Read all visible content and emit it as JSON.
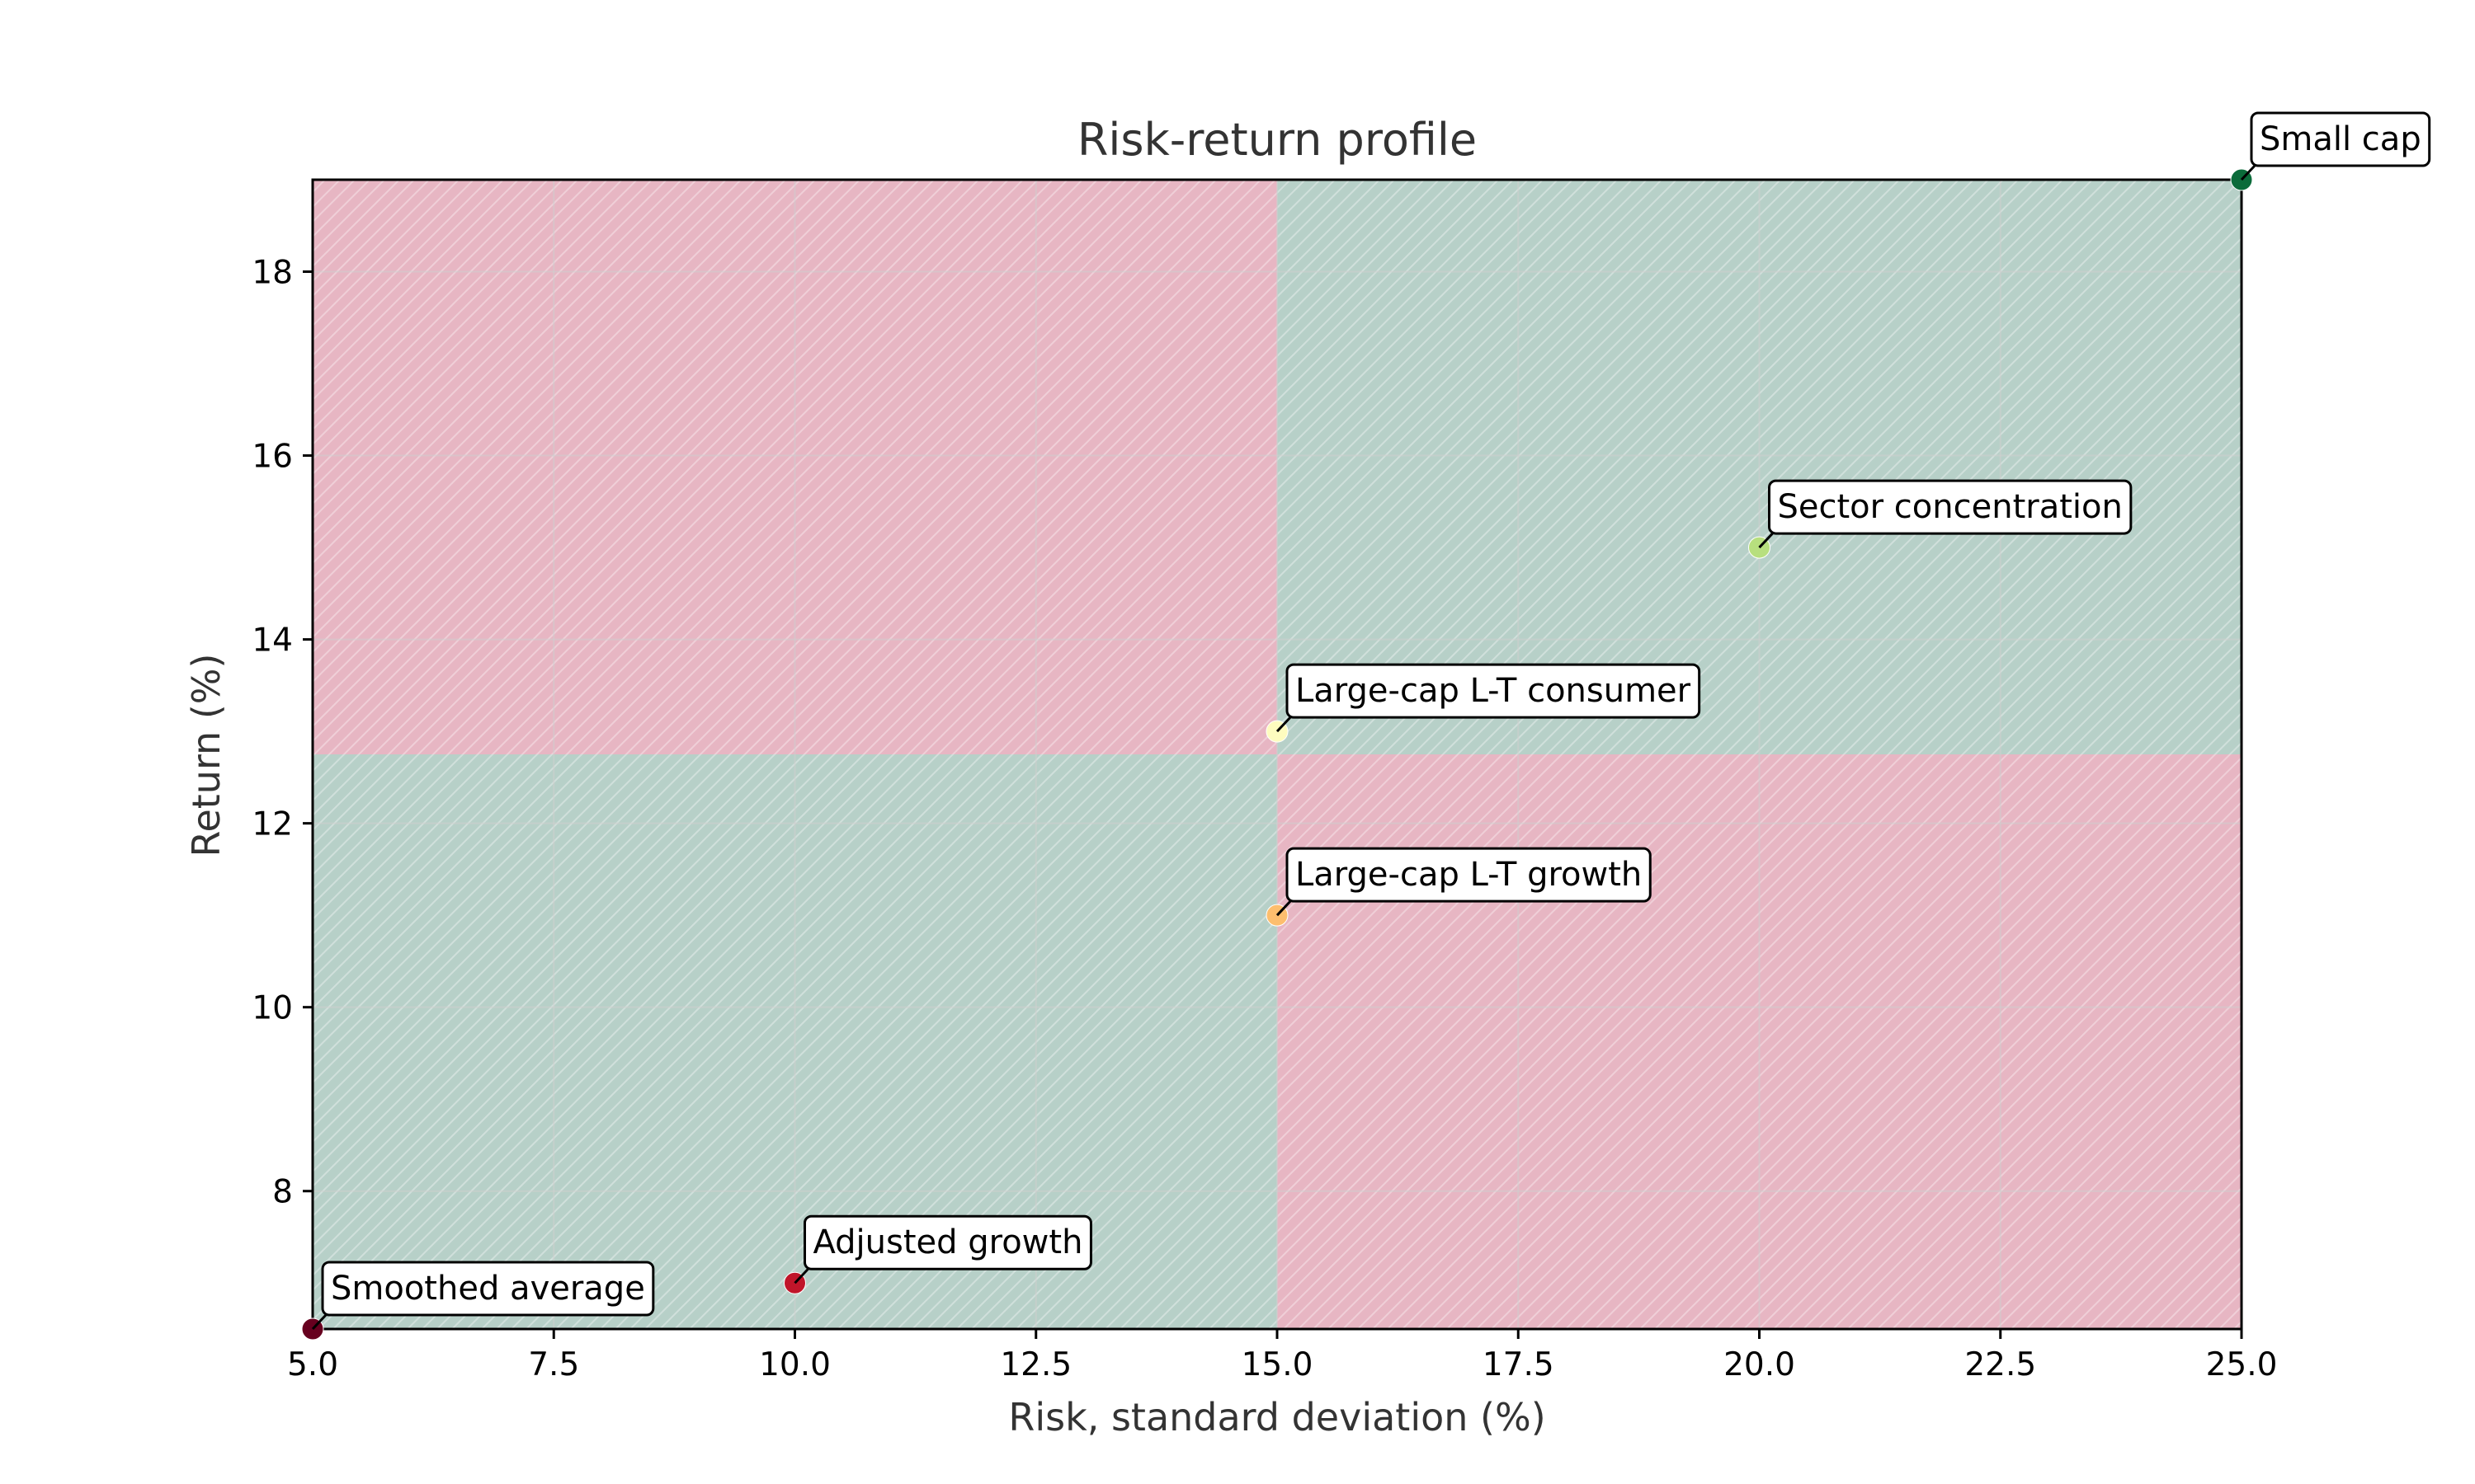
{
  "chart_data": {
    "type": "scatter",
    "title": "Risk-return profile",
    "xlabel": "Risk, standard deviation (%)",
    "ylabel": "Return (%)",
    "xlim": [
      5.0,
      25.0
    ],
    "ylim": [
      6.5,
      19.0
    ],
    "x_ticks": [
      "5.0",
      "7.5",
      "10.0",
      "12.5",
      "15.0",
      "17.5",
      "20.0",
      "22.5",
      "25.0"
    ],
    "y_ticks": [
      "8",
      "10",
      "12",
      "14",
      "16",
      "18"
    ],
    "grid": true,
    "points": [
      {
        "label": "Smoothed average",
        "x": 5.0,
        "y": 6.5,
        "color": "#67001f"
      },
      {
        "label": "Adjusted growth",
        "x": 10.0,
        "y": 7.0,
        "color": "#c0152a"
      },
      {
        "label": "Large-cap L-T growth",
        "x": 15.0,
        "y": 11.0,
        "color": "#fdbe6e"
      },
      {
        "label": "Large-cap L-T consumer",
        "x": 15.0,
        "y": 13.0,
        "color": "#fefcbf"
      },
      {
        "label": "Sector concentration",
        "x": 20.0,
        "y": 15.0,
        "color": "#b7df7e"
      },
      {
        "label": "Small cap",
        "x": 25.0,
        "y": 19.0,
        "color": "#0b6b3a"
      }
    ],
    "quadrants": {
      "x_split": 15.0,
      "y_split": 12.75,
      "favorable_color": "#b7d0c8",
      "unfavorable_color": "#e7b6c3",
      "favorable": [
        "lower-left",
        "upper-right"
      ],
      "unfavorable": [
        "upper-left",
        "lower-right"
      ]
    }
  }
}
